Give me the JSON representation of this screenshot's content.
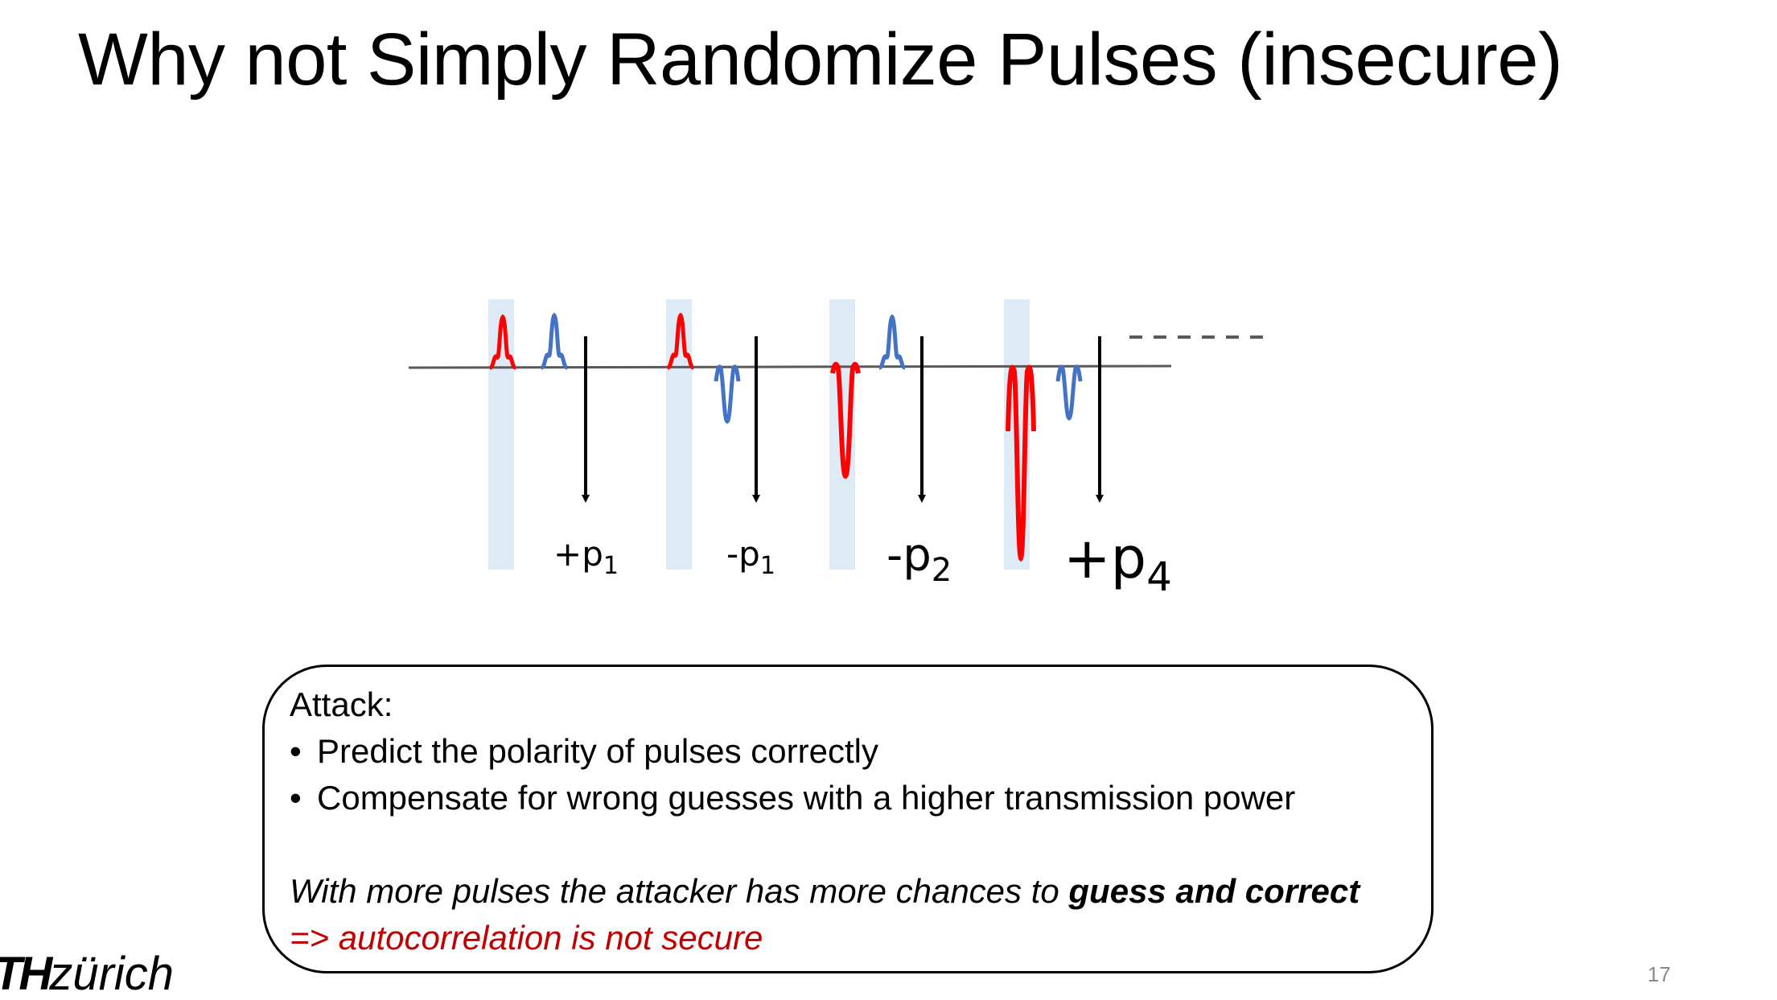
{
  "title": "Why not Simply Randomize Pulses (insecure)",
  "diagram": {
    "labels": [
      {
        "sign": "+p",
        "sub": "1"
      },
      {
        "sign": "-p",
        "sub": "1"
      },
      {
        "sign": "-p",
        "sub": "2"
      },
      {
        "sign": "+p",
        "sub": "4"
      }
    ],
    "colors": {
      "red_pulse": "#ff0000",
      "blue_pulse": "#4472c4",
      "highlight": "#deebf7",
      "axis": "#595959"
    }
  },
  "attack_box": {
    "heading": "Attack:",
    "bullets": [
      "Predict the polarity of pulses correctly",
      "Compensate for wrong guesses with a higher transmission power"
    ],
    "note_prefix": "With more pulses the attacker has more chances to ",
    "note_emphasis": "guess and correct",
    "conclusion": "=> autocorrelation is not secure"
  },
  "footer": {
    "logo_bold": "TH",
    "logo_rest": "zürich",
    "page_number": "17"
  }
}
